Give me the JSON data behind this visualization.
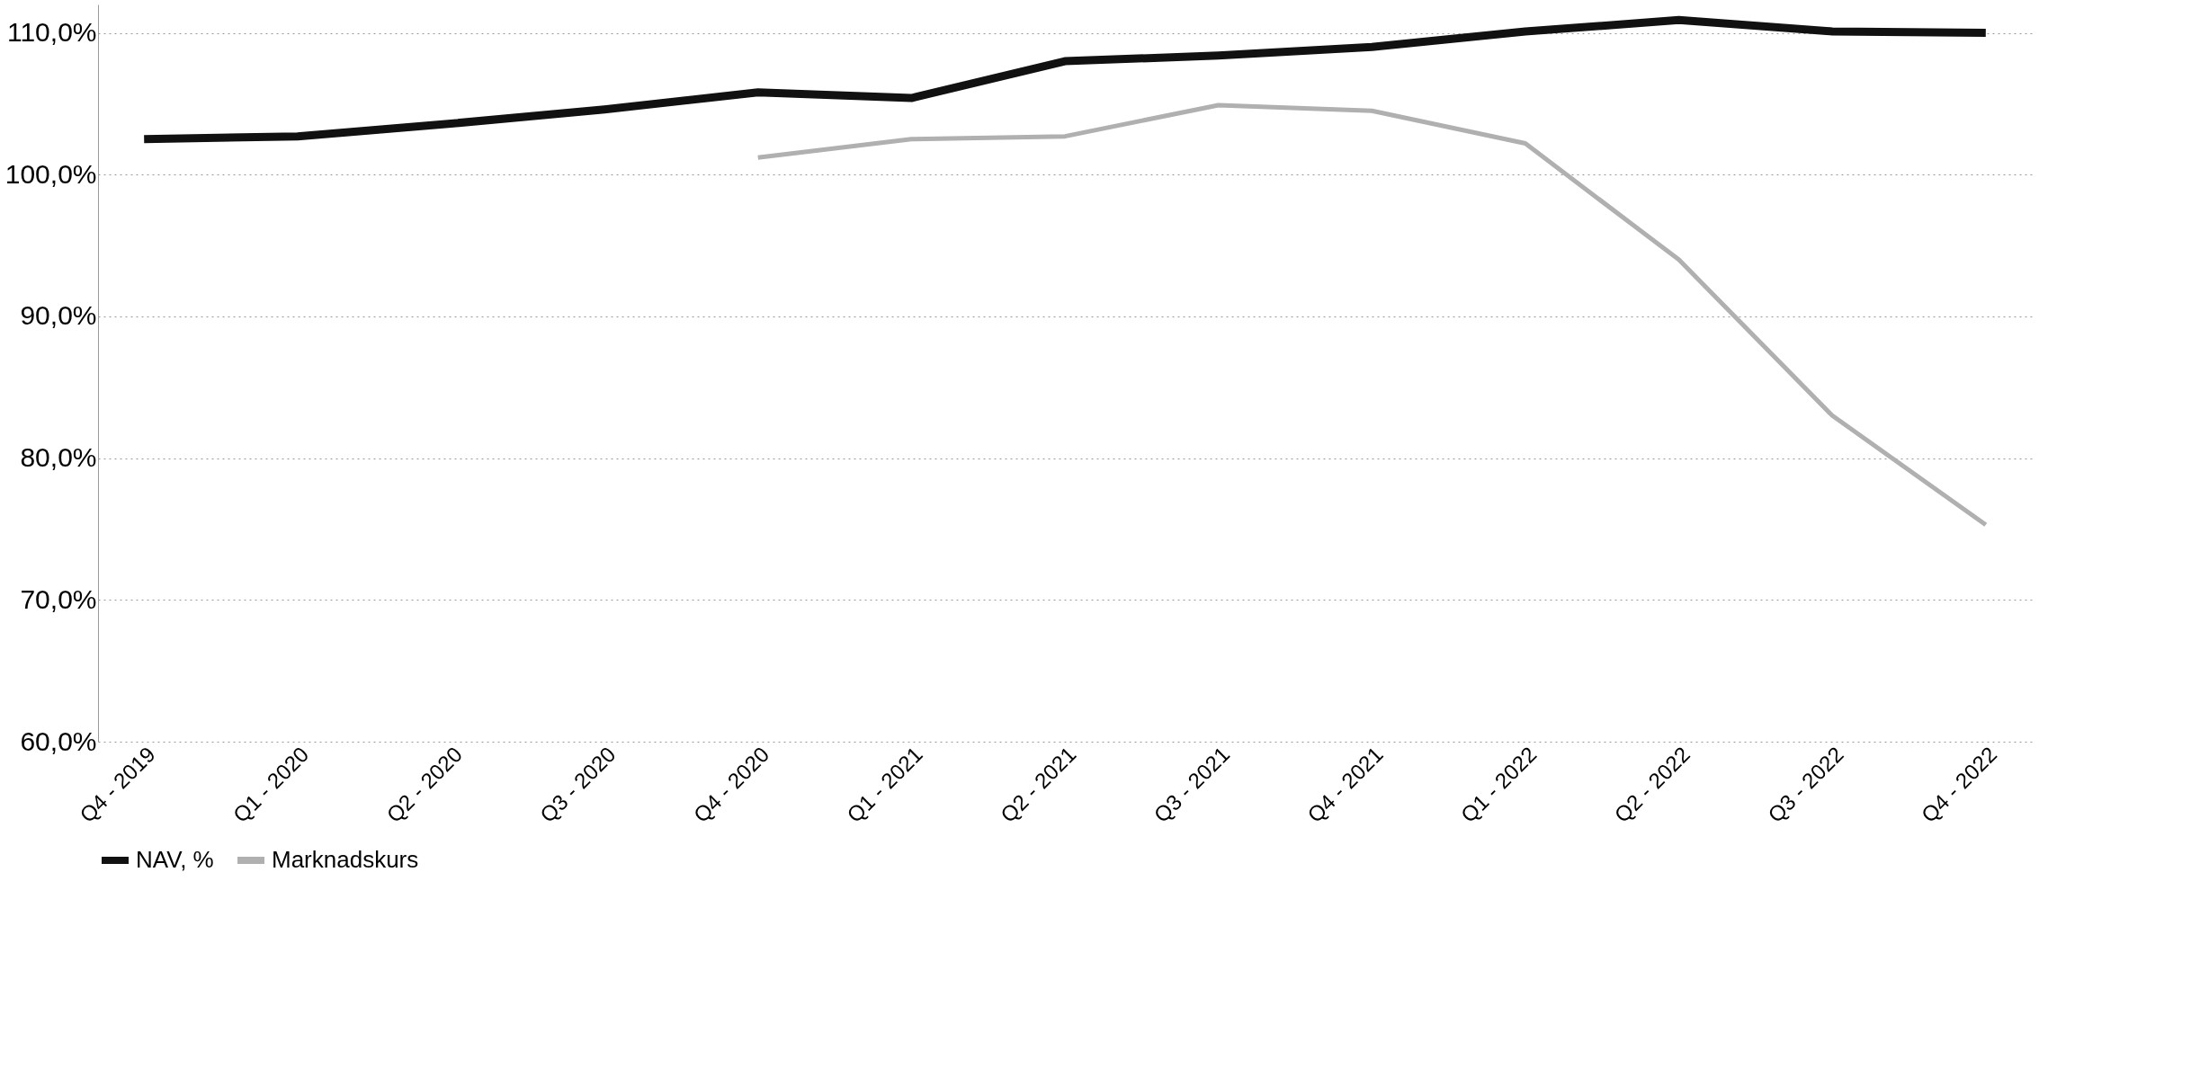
{
  "chart_data": {
    "type": "line",
    "categories": [
      "Q4 - 2019",
      "Q1 - 2020",
      "Q2 - 2020",
      "Q3 - 2020",
      "Q4 - 2020",
      "Q1 - 2021",
      "Q2 - 2021",
      "Q3 - 2021",
      "Q4 - 2021",
      "Q1 - 2022",
      "Q2 - 2022",
      "Q3 - 2022",
      "Q4 - 2022"
    ],
    "series": [
      {
        "name": "NAV, %",
        "color": "#111111",
        "values": [
          102.5,
          102.7,
          103.6,
          104.6,
          105.8,
          105.4,
          108.0,
          108.4,
          109.0,
          110.1,
          110.9,
          110.1,
          110.0
        ]
      },
      {
        "name": "Marknadskurs",
        "color": "#b0b0b0",
        "values": [
          null,
          null,
          null,
          null,
          101.2,
          102.5,
          102.7,
          104.9,
          104.5,
          102.2,
          94.0,
          83.0,
          75.3
        ]
      }
    ],
    "ylim": [
      60,
      112
    ],
    "yticks": [
      {
        "value": 60,
        "label": "60,0%"
      },
      {
        "value": 70,
        "label": "70,0%"
      },
      {
        "value": 80,
        "label": "80,0%"
      },
      {
        "value": 90,
        "label": "90,0%"
      },
      {
        "value": 100,
        "label": "100,0%"
      },
      {
        "value": 110,
        "label": "110,0%"
      }
    ],
    "grid": "y",
    "legend": "bottom",
    "line_style": "solid",
    "marker": "none"
  }
}
